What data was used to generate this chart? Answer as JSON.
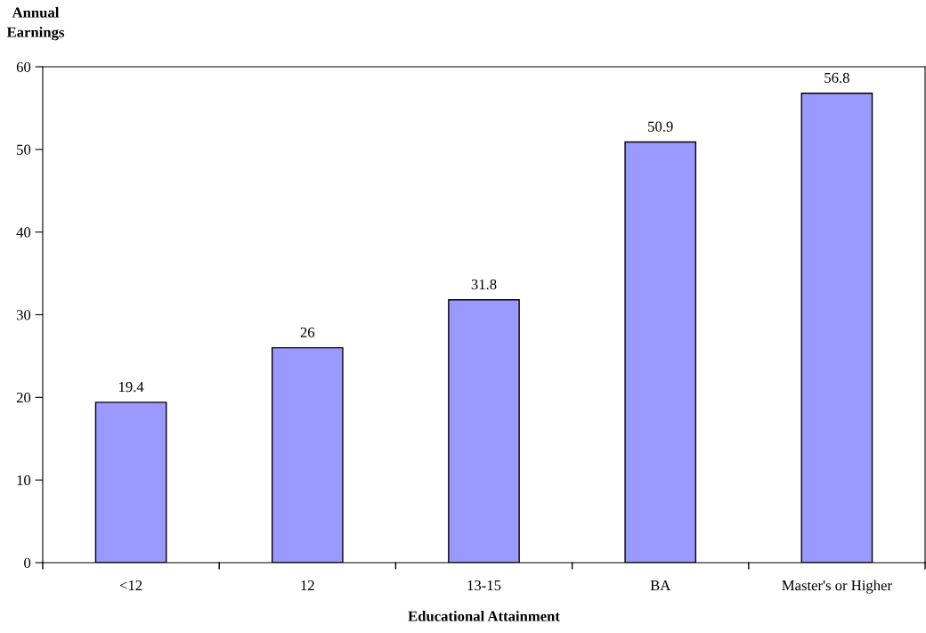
{
  "chart_data": {
    "type": "bar",
    "ylabel": "Annual\nEarnings",
    "xlabel": "Educational Attainment",
    "categories": [
      "<12",
      "12",
      "13-15",
      "BA",
      "Master's or Higher"
    ],
    "values": [
      19.4,
      26,
      31.8,
      50.9,
      56.8
    ],
    "color": "#9999ff",
    "ylim": [
      0,
      60
    ],
    "yticks": [
      0,
      10,
      20,
      30,
      40,
      50,
      60
    ],
    "grid": false,
    "data_labels": true
  }
}
